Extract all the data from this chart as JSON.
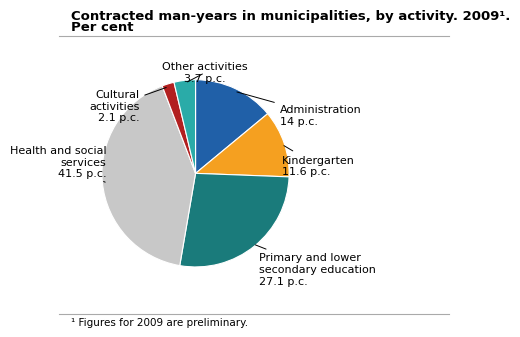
{
  "title_line1": "Contracted man-years in municipalities, by activity. 2009¹.",
  "title_line2": "Per cent",
  "footnote": "¹ Figures for 2009 are preliminary.",
  "slices": [
    {
      "label": "Administration\n14 p.c.",
      "value": 14.0,
      "color": "#2060A8"
    },
    {
      "label": "Kindergarten\n11.6 p.c.",
      "value": 11.6,
      "color": "#F5A020"
    },
    {
      "label": "Primary and lower\nsecondary education\n27.1 p.c.",
      "value": 27.1,
      "color": "#1A7B7B"
    },
    {
      "label": "Health and social\nservices\n41.5 p.c.",
      "value": 41.5,
      "color": "#C8C8C8"
    },
    {
      "label": "Cultural\nactivities\n2.1 p.c.",
      "value": 2.1,
      "color": "#B22020"
    },
    {
      "label": "Other activities\n3.7 p.c.",
      "value": 3.7,
      "color": "#2AABA8"
    }
  ],
  "label_configs": [
    {
      "xt": 0.9,
      "yt": 0.62,
      "ha": "left",
      "va": "center"
    },
    {
      "xt": 0.92,
      "yt": 0.08,
      "ha": "left",
      "va": "center"
    },
    {
      "xt": 0.68,
      "yt": -0.85,
      "ha": "left",
      "va": "top"
    },
    {
      "xt": -0.95,
      "yt": 0.12,
      "ha": "right",
      "va": "center"
    },
    {
      "xt": -0.6,
      "yt": 0.72,
      "ha": "right",
      "va": "center"
    },
    {
      "xt": 0.1,
      "yt": 0.96,
      "ha": "center",
      "va": "bottom"
    }
  ],
  "background_color": "#FFFFFF",
  "title_fontsize": 9.5,
  "label_fontsize": 8.0,
  "footnote_fontsize": 7.5
}
